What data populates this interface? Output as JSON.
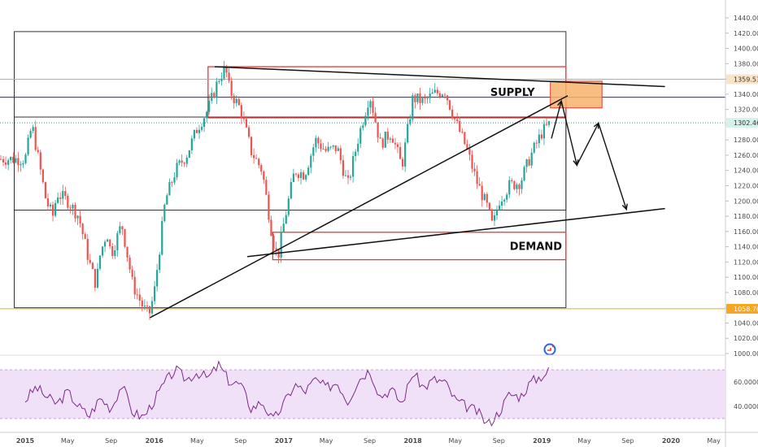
{
  "chart_data": {
    "type": "candlestick",
    "instrument_note": "",
    "price_axis": {
      "min": 1000,
      "max": 1440,
      "step": 20,
      "tick_labels": [
        "1000.00",
        "1020.00",
        "1040.00",
        "1060.00",
        "1080.00",
        "1100.00",
        "1120.00",
        "1140.00",
        "1160.00",
        "1180.00",
        "1200.00",
        "1220.00",
        "1240.00",
        "1260.00",
        "1280.00",
        "1300.00",
        "1320.00",
        "1340.00",
        "1360.00",
        "1380.00",
        "1400.00",
        "1420.00",
        "1440.00"
      ]
    },
    "time_axis": {
      "start": "2015-01",
      "end": "2020-05",
      "tick_labels": [
        {
          "date": "2015-01",
          "label": "2015"
        },
        {
          "date": "2015-05",
          "label": "May"
        },
        {
          "date": "2015-09",
          "label": "Sep"
        },
        {
          "date": "2016-01",
          "label": "2016"
        },
        {
          "date": "2016-05",
          "label": "May"
        },
        {
          "date": "2016-09",
          "label": "Sep"
        },
        {
          "date": "2017-01",
          "label": "2017"
        },
        {
          "date": "2017-05",
          "label": "May"
        },
        {
          "date": "2017-09",
          "label": "Sep"
        },
        {
          "date": "2018-01",
          "label": "2018"
        },
        {
          "date": "2018-05",
          "label": "May"
        },
        {
          "date": "2018-09",
          "label": "Sep"
        },
        {
          "date": "2019-01",
          "label": "2019"
        },
        {
          "date": "2019-05",
          "label": "May"
        },
        {
          "date": "2019-09",
          "label": "Sep"
        },
        {
          "date": "2020-01",
          "label": "2020"
        },
        {
          "date": "2020-05",
          "label": "May"
        }
      ]
    },
    "price_path": [
      [
        "2015-01",
        1255
      ],
      [
        "2015-01-20",
        1300
      ],
      [
        "2015-02",
        1270
      ],
      [
        "2015-03",
        1200
      ],
      [
        "2015-03-20",
        1180
      ],
      [
        "2015-04",
        1210
      ],
      [
        "2015-05",
        1200
      ],
      [
        "2015-06",
        1180
      ],
      [
        "2015-07",
        1120
      ],
      [
        "2015-07-20",
        1090
      ],
      [
        "2015-08",
        1130
      ],
      [
        "2015-08-20",
        1160
      ],
      [
        "2015-09",
        1130
      ],
      [
        "2015-10",
        1170
      ],
      [
        "2015-11",
        1090
      ],
      [
        "2015-12",
        1060
      ],
      [
        "2015-12-17",
        1050
      ],
      [
        "2016-01",
        1080
      ],
      [
        "2016-02",
        1200
      ],
      [
        "2016-03",
        1240
      ],
      [
        "2016-04",
        1260
      ],
      [
        "2016-05",
        1295
      ],
      [
        "2016-06",
        1320
      ],
      [
        "2016-07",
        1360
      ],
      [
        "2016-07-20",
        1375
      ],
      [
        "2016-08",
        1345
      ],
      [
        "2016-09",
        1320
      ],
      [
        "2016-10",
        1265
      ],
      [
        "2016-11",
        1240
      ],
      [
        "2016-12",
        1150
      ],
      [
        "2016-12-15",
        1125
      ],
      [
        "2017-01",
        1170
      ],
      [
        "2017-02",
        1240
      ],
      [
        "2017-03",
        1235
      ],
      [
        "2017-04",
        1280
      ],
      [
        "2017-05",
        1265
      ],
      [
        "2017-06",
        1270
      ],
      [
        "2017-07",
        1220
      ],
      [
        "2017-08",
        1285
      ],
      [
        "2017-09",
        1340
      ],
      [
        "2017-10",
        1275
      ],
      [
        "2017-11",
        1290
      ],
      [
        "2017-12",
        1245
      ],
      [
        "2018-01",
        1335
      ],
      [
        "2018-02",
        1330
      ],
      [
        "2018-03",
        1340
      ],
      [
        "2018-04",
        1345
      ],
      [
        "2018-05",
        1305
      ],
      [
        "2018-06",
        1270
      ],
      [
        "2018-07",
        1225
      ],
      [
        "2018-08",
        1190
      ],
      [
        "2018-08-15",
        1165
      ],
      [
        "2018-09",
        1200
      ],
      [
        "2018-10",
        1220
      ],
      [
        "2018-11",
        1225
      ],
      [
        "2018-12",
        1260
      ],
      [
        "2019-01",
        1290
      ],
      [
        "2019-01-25",
        1302
      ]
    ],
    "rsi": {
      "axis_labels": [
        "40.0000",
        "60.0000"
      ],
      "band": [
        30,
        70
      ],
      "values": [
        [
          "2015-01",
          45
        ],
        [
          "2015-02",
          56
        ],
        [
          "2015-03",
          48
        ],
        [
          "2015-04",
          42
        ],
        [
          "2015-05",
          52
        ],
        [
          "2015-06",
          40
        ],
        [
          "2015-07",
          32
        ],
        [
          "2015-08",
          47
        ],
        [
          "2015-09",
          38
        ],
        [
          "2015-10",
          58
        ],
        [
          "2015-11",
          35
        ],
        [
          "2015-12",
          31
        ],
        [
          "2016-01",
          45
        ],
        [
          "2016-02",
          60
        ],
        [
          "2016-03",
          70
        ],
        [
          "2016-04",
          62
        ],
        [
          "2016-05",
          68
        ],
        [
          "2016-06",
          63
        ],
        [
          "2016-07",
          74
        ],
        [
          "2016-08",
          60
        ],
        [
          "2016-09",
          58
        ],
        [
          "2016-10",
          38
        ],
        [
          "2016-11",
          44
        ],
        [
          "2016-12",
          28
        ],
        [
          "2017-01",
          42
        ],
        [
          "2017-02",
          58
        ],
        [
          "2017-03",
          52
        ],
        [
          "2017-04",
          62
        ],
        [
          "2017-05",
          55
        ],
        [
          "2017-06",
          60
        ],
        [
          "2017-07",
          44
        ],
        [
          "2017-08",
          62
        ],
        [
          "2017-09",
          70
        ],
        [
          "2017-10",
          48
        ],
        [
          "2017-11",
          54
        ],
        [
          "2017-12",
          42
        ],
        [
          "2018-01",
          68
        ],
        [
          "2018-02",
          55
        ],
        [
          "2018-03",
          62
        ],
        [
          "2018-04",
          60
        ],
        [
          "2018-05",
          45
        ],
        [
          "2018-06",
          40
        ],
        [
          "2018-07",
          36
        ],
        [
          "2018-08",
          25
        ],
        [
          "2018-09",
          35
        ],
        [
          "2018-10",
          50
        ],
        [
          "2018-11",
          48
        ],
        [
          "2018-12",
          60
        ],
        [
          "2019-01",
          65
        ],
        [
          "2019-01-25",
          70
        ]
      ]
    },
    "horizontal_levels": [
      {
        "label": "1359.53",
        "price": 1359.53,
        "color": "#f5a623",
        "tag_bg": "#fbe3c7"
      },
      {
        "label": "",
        "price": 1336,
        "color": "#2222cc"
      },
      {
        "label": "1302.46",
        "price": 1302.46,
        "color": "#26a69a",
        "tag_bg": "#d6f0ec",
        "dotted": true
      },
      {
        "label": "1058.70",
        "price": 1058.7,
        "color": "#f5a623",
        "tag_bg": "#f5a623"
      }
    ],
    "zones": [
      {
        "label": "SUPPLY",
        "from": "2016-06",
        "to": "2019-03-10",
        "high": 1376,
        "low": 1309
      },
      {
        "label": "DEMAND",
        "from": "2016-12",
        "to": "2019-03-10",
        "high": 1159,
        "low": 1123
      }
    ],
    "range_boxes": [
      {
        "from": "2014-12",
        "to": "2019-03-10",
        "high": 1422,
        "low": 1060
      },
      {
        "from": "2014-12",
        "to": "2019-03-10",
        "high": 1310,
        "low": 1188
      }
    ],
    "target_box": {
      "from": "2019-01-25",
      "to": "2019-06-20",
      "high": 1357,
      "low": 1322
    },
    "lines": [
      {
        "p1": [
          "2015-12-20",
          1047
        ],
        "p2": [
          "2019-03-15",
          1338
        ]
      },
      {
        "p1": [
          "2016-06-20",
          1376
        ],
        "p2": [
          "2019-12-15",
          1350
        ]
      },
      {
        "p1": [
          "2016-09-20",
          1127
        ],
        "p2": [
          "2019-12-15",
          1190
        ]
      }
    ],
    "projection_path": [
      [
        "2019-01-28",
        1282
      ],
      [
        "2019-02-25",
        1331
      ],
      [
        "2019-04-10",
        1247
      ],
      [
        "2019-06-10",
        1302
      ],
      [
        "2019-08-28",
        1189
      ]
    ],
    "colors": {
      "up": "#26a69a",
      "down": "#ef5350",
      "rsi_line": "#7b2a86",
      "rsi_band": "#f1e1f8",
      "zone_border": "#e53935",
      "target_fill": "#f7b26b"
    }
  }
}
